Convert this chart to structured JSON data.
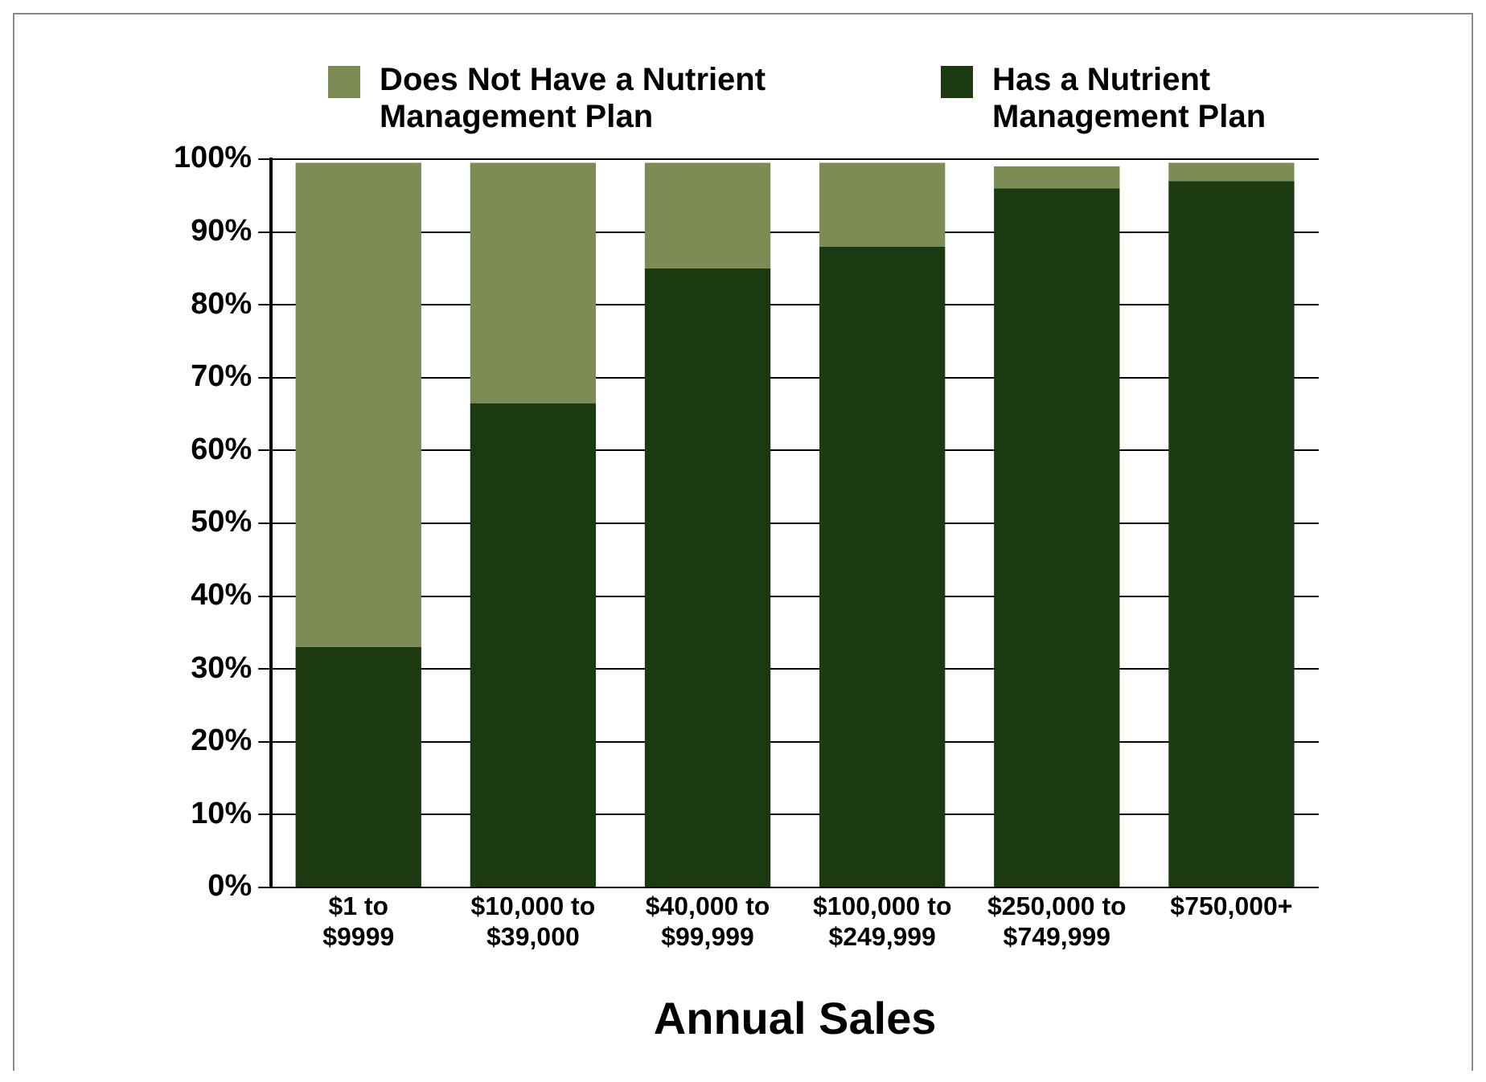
{
  "chart_data": {
    "type": "bar",
    "stacked": true,
    "xlabel": "Annual Sales",
    "categories": [
      "$1 to $9999",
      "$10,000 to $39,000",
      "$40,000 to $99,999",
      "$100,000 to $249,999",
      "$250,000 to $749,999",
      "$750,000+"
    ],
    "series": [
      {
        "name": "Has a Nutrient Management Plan",
        "color": "#1c3a12",
        "values": [
          33,
          66.5,
          85,
          88,
          96,
          97
        ]
      },
      {
        "name": "Does Not Have a Nutrient Management Plan",
        "color": "#7d8c55",
        "values": [
          66.5,
          33,
          14.5,
          11.5,
          3,
          2.5
        ]
      }
    ],
    "ylim": [
      0,
      100
    ],
    "yticks": [
      {
        "value": 0,
        "label": "0%"
      },
      {
        "value": 10,
        "label": "10%"
      },
      {
        "value": 20,
        "label": "20%"
      },
      {
        "value": 30,
        "label": "30%"
      },
      {
        "value": 40,
        "label": "40%"
      },
      {
        "value": 50,
        "label": "50%"
      },
      {
        "value": 60,
        "label": "60%"
      },
      {
        "value": 70,
        "label": "70%"
      },
      {
        "value": 80,
        "label": "80%"
      },
      {
        "value": 90,
        "label": "90%"
      },
      {
        "value": 100,
        "label": "100%"
      }
    ],
    "grid": "y",
    "legend": "top"
  }
}
